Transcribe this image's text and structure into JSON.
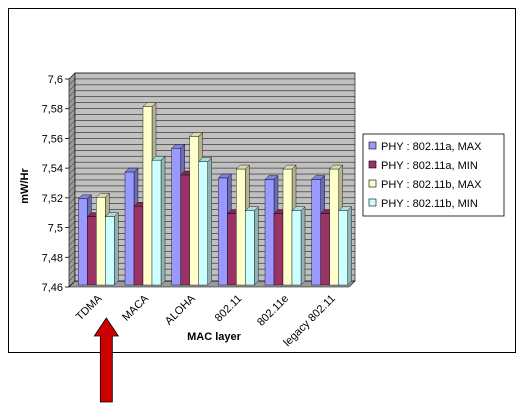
{
  "chart_data": {
    "type": "bar",
    "title": "",
    "xlabel": "MAC layer",
    "ylabel": "mW/Hr",
    "ylim": [
      7.46,
      7.6
    ],
    "ytick_step": 0.02,
    "grid": true,
    "legend_position": "right",
    "categories": [
      "TDMA",
      "MACA",
      "ALOHA",
      "802.11",
      "802.11e",
      "legacy 802.11"
    ],
    "series": [
      {
        "name": "PHY : 802.11a, MAX",
        "color": "#9999ff",
        "values": [
          7.518,
          7.536,
          7.552,
          7.532,
          7.531,
          7.531
        ]
      },
      {
        "name": "PHY : 802.11a,  MIN",
        "color": "#993366",
        "values": [
          7.506,
          7.513,
          7.534,
          7.508,
          7.508,
          7.508
        ]
      },
      {
        "name": "PHY : 802.11b, MAX",
        "color": "#ffffcc",
        "values": [
          7.519,
          7.58,
          7.56,
          7.538,
          7.538,
          7.538
        ]
      },
      {
        "name": "PHY : 802.11b, MIN",
        "color": "#ccffff",
        "values": [
          7.506,
          7.544,
          7.543,
          7.51,
          7.51,
          7.51
        ]
      }
    ],
    "plot_background": "#c0c0c0",
    "annotation": {
      "type": "arrow",
      "color": "#cc0000",
      "points_to": "TDMA"
    }
  }
}
